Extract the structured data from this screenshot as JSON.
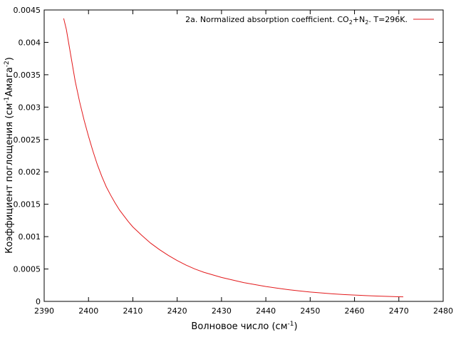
{
  "chart_data": {
    "type": "line",
    "xlabel": {
      "main": "Волновое число (см",
      "sup": "-1",
      "tail": ")"
    },
    "ylabel": {
      "main": "Коэффициент поглощения (см",
      "sup1": "-1",
      "mid": "Амага",
      "sup2": "-2",
      "tail": ")"
    },
    "xlim": [
      2390,
      2480
    ],
    "ylim": [
      0,
      0.0045
    ],
    "x_ticks": [
      "2390",
      "2400",
      "2410",
      "2420",
      "2430",
      "2440",
      "2450",
      "2460",
      "2470",
      "2480"
    ],
    "y_ticks": [
      "0",
      "0.0005",
      "0.001",
      "0.0015",
      "0.002",
      "0.0025",
      "0.003",
      "0.0035",
      "0.004",
      "0.0045"
    ],
    "grid": false,
    "legend_position": "top-right",
    "colors": {
      "series": "#e31a1c"
    },
    "legend": {
      "prefix": "2a. Normalized absorption coefficient. CO",
      "sub1": "2",
      "mid": "+N",
      "sub2": "2",
      "tail": ". T=296K."
    },
    "series": [
      {
        "x": [
          2394.4,
          2395.0,
          2396.0,
          2397.0,
          2398.0,
          2399.0,
          2400.0,
          2401.0,
          2402.0,
          2403.0,
          2404.0,
          2405.0,
          2406.0,
          2407.0,
          2408.0,
          2409.0,
          2410.0,
          2412.0,
          2414.0,
          2416.0,
          2418.0,
          2420.0,
          2422.0,
          2424.0,
          2426.0,
          2428.0,
          2430.0,
          2432.5,
          2435.0,
          2437.5,
          2440.0,
          2442.5,
          2445.0,
          2447.5,
          2450.0,
          2452.5,
          2455.0,
          2457.5,
          2460.0,
          2462.5,
          2465.0,
          2467.5,
          2470.0,
          2471.0
        ],
        "y": [
          0.00437,
          0.0042,
          0.0038,
          0.0034,
          0.00308,
          0.0028,
          0.00255,
          0.00232,
          0.00211,
          0.00193,
          0.00177,
          0.00164,
          0.00152,
          0.00141,
          0.00132,
          0.00123,
          0.00115,
          0.00102,
          0.0009,
          0.0008,
          0.00071,
          0.00063,
          0.00056,
          0.0005,
          0.00045,
          0.00041,
          0.00037,
          0.00033,
          0.00029,
          0.00026,
          0.00023,
          0.000205,
          0.000182,
          0.000162,
          0.000145,
          0.00013,
          0.000117,
          0.000106,
          9.7e-05,
          9e-05,
          8.3e-05,
          7.7e-05,
          7.2e-05,
          7e-05
        ]
      }
    ]
  }
}
